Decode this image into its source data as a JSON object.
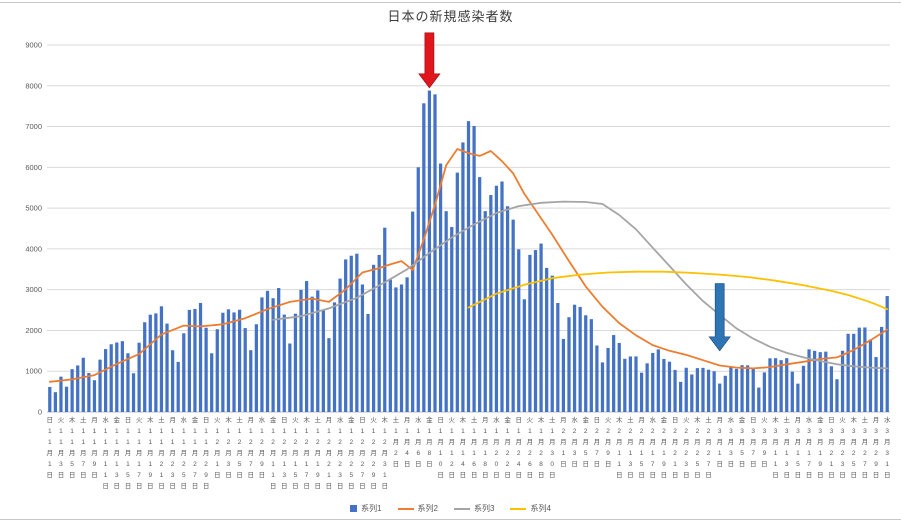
{
  "title": "日本の新規感染者数",
  "legend": [
    {
      "label": "系列1",
      "type": "bar",
      "color": "#4472C4"
    },
    {
      "label": "系列2",
      "type": "line",
      "color": "#ED7D31"
    },
    {
      "label": "系列3",
      "type": "line",
      "color": "#A5A5A5"
    },
    {
      "label": "系列4",
      "type": "line",
      "color": "#FFC000"
    }
  ],
  "chart_data": {
    "type": "combo",
    "title": "日本の新規感染者数",
    "ylim": [
      0,
      9000
    ],
    "y_ticks": [
      0,
      1000,
      2000,
      3000,
      4000,
      5000,
      6000,
      7000,
      8000,
      9000
    ],
    "gridlines": true,
    "legend_position": "bottom",
    "n_categories": 151,
    "x_axis_note": "daily categories from 11月1日(日) to 3月31日(水), tick labels every 2 days, stacked vertical text",
    "x_tick_labels": [
      [
        "日",
        11,
        1
      ],
      [
        "火",
        11,
        3
      ],
      [
        "木",
        11,
        5
      ],
      [
        "土",
        11,
        7
      ],
      [
        "月",
        11,
        9
      ],
      [
        "水",
        11,
        11
      ],
      [
        "金",
        11,
        13
      ],
      [
        "日",
        11,
        15
      ],
      [
        "火",
        11,
        17
      ],
      [
        "木",
        11,
        19
      ],
      [
        "土",
        11,
        21
      ],
      [
        "月",
        11,
        23
      ],
      [
        "水",
        11,
        25
      ],
      [
        "金",
        11,
        27
      ],
      [
        "日",
        11,
        29
      ],
      [
        "火",
        12,
        1
      ],
      [
        "木",
        12,
        3
      ],
      [
        "土",
        12,
        5
      ],
      [
        "月",
        12,
        7
      ],
      [
        "水",
        12,
        9
      ],
      [
        "金",
        12,
        11
      ],
      [
        "日",
        12,
        13
      ],
      [
        "火",
        12,
        15
      ],
      [
        "木",
        12,
        17
      ],
      [
        "土",
        12,
        19
      ],
      [
        "月",
        12,
        21
      ],
      [
        "水",
        12,
        23
      ],
      [
        "金",
        12,
        25
      ],
      [
        "日",
        12,
        27
      ],
      [
        "火",
        12,
        29
      ],
      [
        "木",
        12,
        31
      ],
      [
        "土",
        1,
        2
      ],
      [
        "月",
        1,
        4
      ],
      [
        "水",
        1,
        6
      ],
      [
        "金",
        1,
        8
      ],
      [
        "日",
        1,
        10
      ],
      [
        "火",
        1,
        12
      ],
      [
        "木",
        1,
        14
      ],
      [
        "土",
        1,
        16
      ],
      [
        "月",
        1,
        18
      ],
      [
        "水",
        1,
        20
      ],
      [
        "金",
        1,
        22
      ],
      [
        "日",
        1,
        24
      ],
      [
        "火",
        1,
        26
      ],
      [
        "木",
        1,
        28
      ],
      [
        "土",
        1,
        30
      ],
      [
        "月",
        2,
        1
      ],
      [
        "水",
        2,
        3
      ],
      [
        "金",
        2,
        5
      ],
      [
        "日",
        2,
        7
      ],
      [
        "火",
        2,
        9
      ],
      [
        "木",
        2,
        11
      ],
      [
        "土",
        2,
        13
      ],
      [
        "月",
        2,
        15
      ],
      [
        "水",
        2,
        17
      ],
      [
        "金",
        2,
        19
      ],
      [
        "日",
        2,
        21
      ],
      [
        "火",
        2,
        23
      ],
      [
        "木",
        2,
        25
      ],
      [
        "土",
        2,
        27
      ],
      [
        "月",
        3,
        1
      ],
      [
        "水",
        3,
        3
      ],
      [
        "金",
        3,
        5
      ],
      [
        "日",
        3,
        7
      ],
      [
        "火",
        3,
        9
      ],
      [
        "木",
        3,
        11
      ],
      [
        "土",
        3,
        13
      ],
      [
        "月",
        3,
        15
      ],
      [
        "水",
        3,
        17
      ],
      [
        "金",
        3,
        19
      ],
      [
        "日",
        3,
        21
      ],
      [
        "火",
        3,
        23
      ],
      [
        "木",
        3,
        25
      ],
      [
        "土",
        3,
        27
      ],
      [
        "月",
        3,
        29
      ],
      [
        "水",
        3,
        31
      ]
    ],
    "series": [
      {
        "name": "系列1",
        "type": "bar",
        "color": "#4472C4",
        "values": [
          614,
          486,
          867,
          620,
          1050,
          1141,
          1331,
          957,
          780,
          1284,
          1543,
          1661,
          1704,
          1737,
          1440,
          950,
          1699,
          2201,
          2386,
          2418,
          2592,
          2168,
          1515,
          1229,
          1930,
          2504,
          2527,
          2674,
          2066,
          1440,
          2030,
          2434,
          2518,
          2442,
          2508,
          2058,
          1516,
          2152,
          2810,
          2972,
          2790,
          3041,
          2388,
          1680,
          2410,
          2994,
          3211,
          2829,
          2982,
          2501,
          1810,
          2688,
          3271,
          3742,
          3832,
          3881,
          3127,
          2403,
          3610,
          3852,
          4520,
          3246,
          3055,
          3127,
          3302,
          4915,
          6001,
          7570,
          7882,
          7790,
          6093,
          4925,
          4536,
          5870,
          6610,
          7133,
          7014,
          5760,
          4925,
          5320,
          5549,
          5653,
          5045,
          4717,
          3989,
          2764,
          3853,
          3971,
          4131,
          3534,
          3344,
          2673,
          1792,
          2324,
          2631,
          2577,
          2372,
          2277,
          1631,
          1216,
          1570,
          1887,
          1693,
          1304,
          1362,
          1364,
          965,
          1194,
          1448,
          1536,
          1300,
          1234,
          1032,
          739,
          1085,
          920,
          1076,
          1083,
          1038,
          999,
          697,
          888,
          1121,
          1058,
          1148,
          1144,
          1066,
          599,
          972,
          1316,
          1320,
          1271,
          1320,
          988,
          695,
          1133,
          1536,
          1499,
          1468,
          1480,
          1121,
          803,
          1502,
          1918,
          1917,
          2069,
          2073,
          1778,
          1348,
          2087,
          2843
        ]
      },
      {
        "name": "系列2",
        "type": "line",
        "color": "#ED7D31",
        "points": [
          [
            0,
            740
          ],
          [
            4,
            800
          ],
          [
            8,
            905
          ],
          [
            12,
            1180
          ],
          [
            16,
            1420
          ],
          [
            20,
            1900
          ],
          [
            24,
            2120
          ],
          [
            27,
            2100
          ],
          [
            31,
            2150
          ],
          [
            35,
            2300
          ],
          [
            39,
            2520
          ],
          [
            43,
            2700
          ],
          [
            47,
            2780
          ],
          [
            50,
            2700
          ],
          [
            53,
            3010
          ],
          [
            56,
            3420
          ],
          [
            59,
            3530
          ],
          [
            61,
            3620
          ],
          [
            63,
            3700
          ],
          [
            65,
            3480
          ],
          [
            67,
            4230
          ],
          [
            69,
            5080
          ],
          [
            71,
            6050
          ],
          [
            73,
            6450
          ],
          [
            75,
            6350
          ],
          [
            77,
            6280
          ],
          [
            79,
            6400
          ],
          [
            81,
            6150
          ],
          [
            83,
            5850
          ],
          [
            85,
            5350
          ],
          [
            87,
            4950
          ],
          [
            90,
            4350
          ],
          [
            93,
            3700
          ],
          [
            96,
            3080
          ],
          [
            99,
            2580
          ],
          [
            102,
            2180
          ],
          [
            105,
            1880
          ],
          [
            108,
            1640
          ],
          [
            111,
            1500
          ],
          [
            114,
            1400
          ],
          [
            117,
            1270
          ],
          [
            120,
            1140
          ],
          [
            123,
            1090
          ],
          [
            126,
            1070
          ],
          [
            129,
            1100
          ],
          [
            132,
            1170
          ],
          [
            135,
            1230
          ],
          [
            138,
            1300
          ],
          [
            141,
            1340
          ],
          [
            144,
            1520
          ],
          [
            147,
            1760
          ],
          [
            150,
            2020
          ]
        ]
      },
      {
        "name": "系列3",
        "type": "line",
        "color": "#A5A5A5",
        "points": [
          [
            40,
            2260
          ],
          [
            45,
            2350
          ],
          [
            50,
            2540
          ],
          [
            55,
            2800
          ],
          [
            60,
            3180
          ],
          [
            64,
            3500
          ],
          [
            68,
            3900
          ],
          [
            72,
            4280
          ],
          [
            76,
            4600
          ],
          [
            80,
            4880
          ],
          [
            84,
            5050
          ],
          [
            88,
            5130
          ],
          [
            92,
            5160
          ],
          [
            96,
            5150
          ],
          [
            99,
            5100
          ],
          [
            102,
            4830
          ],
          [
            105,
            4480
          ],
          [
            108,
            4030
          ],
          [
            111,
            3580
          ],
          [
            114,
            3130
          ],
          [
            117,
            2720
          ],
          [
            120,
            2380
          ],
          [
            123,
            2050
          ],
          [
            126,
            1800
          ],
          [
            129,
            1600
          ],
          [
            132,
            1450
          ],
          [
            135,
            1340
          ],
          [
            138,
            1250
          ],
          [
            141,
            1170
          ],
          [
            144,
            1120
          ],
          [
            147,
            1090
          ],
          [
            150,
            1070
          ]
        ]
      },
      {
        "name": "系列4",
        "type": "line",
        "color": "#FFC000",
        "points": [
          [
            75,
            2560
          ],
          [
            80,
            2900
          ],
          [
            85,
            3120
          ],
          [
            90,
            3280
          ],
          [
            95,
            3370
          ],
          [
            100,
            3420
          ],
          [
            105,
            3440
          ],
          [
            110,
            3440
          ],
          [
            115,
            3410
          ],
          [
            120,
            3370
          ],
          [
            125,
            3310
          ],
          [
            130,
            3220
          ],
          [
            135,
            3110
          ],
          [
            140,
            2970
          ],
          [
            143,
            2870
          ],
          [
            146,
            2740
          ],
          [
            148,
            2640
          ],
          [
            150,
            2520
          ]
        ]
      }
    ],
    "annotations": [
      {
        "name": "red-arrow",
        "shape": "block-arrow-down",
        "color": "#e0161d",
        "stroke": "#9e0b12",
        "x_index": 68,
        "value_from": 9300,
        "value_to": 7950
      },
      {
        "name": "blue-arrow",
        "shape": "block-arrow-down",
        "color": "#2e75b6",
        "stroke": "#1f4e79",
        "x_index": 120,
        "value_from": 3150,
        "value_to": 1500
      }
    ]
  }
}
